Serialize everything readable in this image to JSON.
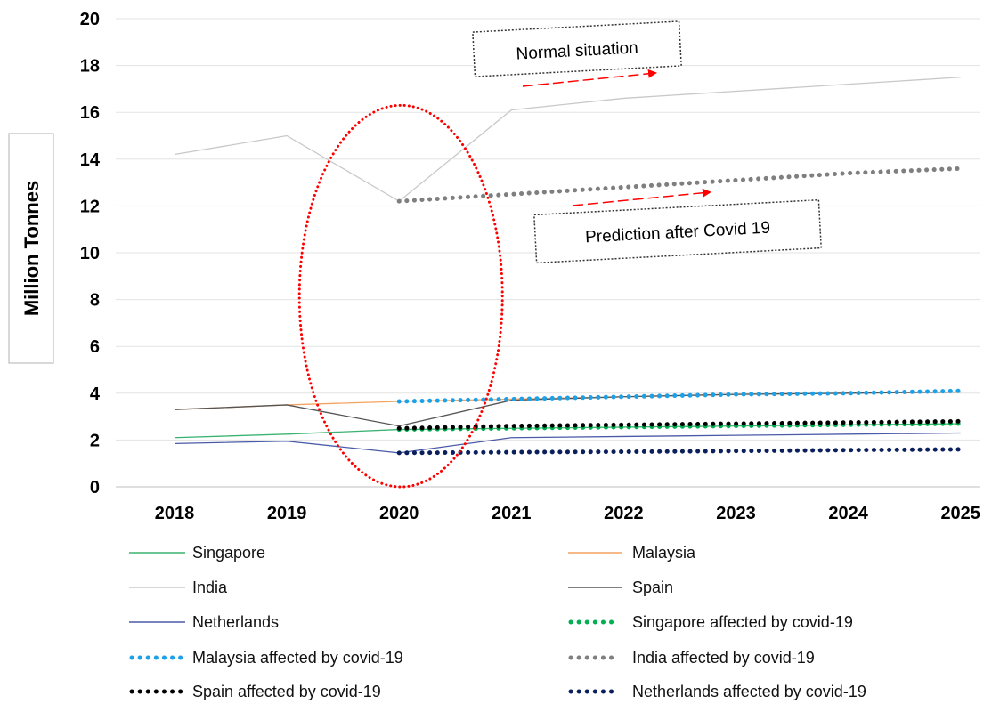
{
  "chart_data": {
    "type": "line",
    "ylabel": "Million Tonnes",
    "ylim": [
      0,
      20
    ],
    "yticks": [
      "0",
      "2",
      "4",
      "6",
      "8",
      "10",
      "12",
      "14",
      "16",
      "18",
      "20"
    ],
    "x": [
      "2018",
      "2019",
      "2020",
      "2021",
      "2022",
      "2023",
      "2024",
      "2025"
    ],
    "grid": "horizontal",
    "legend_position": "bottom",
    "series": [
      {
        "name": "Singapore",
        "style": "solid",
        "color": "#3cb371",
        "x": [
          "2018",
          "2019",
          "2020",
          "2021",
          "2022",
          "2023",
          "2024",
          "2025"
        ],
        "values": [
          2.1,
          2.25,
          2.45,
          2.5,
          2.55,
          2.6,
          2.65,
          2.7
        ]
      },
      {
        "name": "Malaysia",
        "style": "solid",
        "color": "#f4a460",
        "x": [
          "2018",
          "2019",
          "2020",
          "2021",
          "2022",
          "2023",
          "2024",
          "2025"
        ],
        "values": [
          3.3,
          3.5,
          3.65,
          3.75,
          3.85,
          3.95,
          4.0,
          4.05
        ]
      },
      {
        "name": "India",
        "style": "solid",
        "color": "#c8c8c8",
        "x": [
          "2018",
          "2019",
          "2020",
          "2021",
          "2022",
          "2023",
          "2024",
          "2025"
        ],
        "values": [
          14.2,
          15.0,
          12.2,
          16.1,
          16.6,
          16.9,
          17.2,
          17.5
        ]
      },
      {
        "name": "Spain",
        "style": "solid",
        "color": "#555555",
        "x": [
          "2018",
          "2019",
          "2020",
          "2021",
          "2022",
          "2023",
          "2024",
          "2025"
        ],
        "values": [
          3.3,
          3.5,
          2.6,
          3.7,
          3.85,
          3.95,
          4.0,
          4.05
        ]
      },
      {
        "name": "Netherlands",
        "style": "solid",
        "color": "#4a5aa8",
        "x": [
          "2018",
          "2019",
          "2020",
          "2021",
          "2022",
          "2023",
          "2024",
          "2025"
        ],
        "values": [
          1.85,
          1.95,
          1.45,
          2.1,
          2.15,
          2.2,
          2.25,
          2.3
        ]
      },
      {
        "name": "Singapore affected by covid-19",
        "style": "dotted",
        "color": "#00b050",
        "x": [
          "2020",
          "2021",
          "2022",
          "2023",
          "2024",
          "2025"
        ],
        "values": [
          2.45,
          2.5,
          2.55,
          2.6,
          2.65,
          2.7
        ]
      },
      {
        "name": "Malaysia affected by covid-19",
        "style": "dotted",
        "color": "#1ca0e8",
        "x": [
          "2020",
          "2021",
          "2022",
          "2023",
          "2024",
          "2025"
        ],
        "values": [
          3.65,
          3.75,
          3.85,
          3.95,
          4.0,
          4.1
        ]
      },
      {
        "name": "India affected by covid-19",
        "style": "dotted",
        "color": "#7f7f7f",
        "x": [
          "2020",
          "2021",
          "2022",
          "2023",
          "2024",
          "2025"
        ],
        "values": [
          12.2,
          12.5,
          12.8,
          13.1,
          13.4,
          13.6
        ]
      },
      {
        "name": "Spain affected by covid-19",
        "style": "dotted",
        "color": "#000000",
        "x": [
          "2020",
          "2021",
          "2022",
          "2023",
          "2024",
          "2025"
        ],
        "values": [
          2.5,
          2.6,
          2.65,
          2.7,
          2.75,
          2.8
        ]
      },
      {
        "name": "Netherlands affected by covid-19",
        "style": "dotted",
        "color": "#0a1f5c",
        "x": [
          "2020",
          "2021",
          "2022",
          "2023",
          "2024",
          "2025"
        ],
        "values": [
          1.45,
          1.48,
          1.5,
          1.53,
          1.57,
          1.6
        ]
      }
    ],
    "annotations": [
      {
        "text": "Normal situation"
      },
      {
        "text": "Prediction after Covid 19"
      }
    ],
    "highlight": {
      "shape": "ellipse",
      "color": "#ff0000",
      "style": "dotted",
      "around": "2020"
    }
  }
}
